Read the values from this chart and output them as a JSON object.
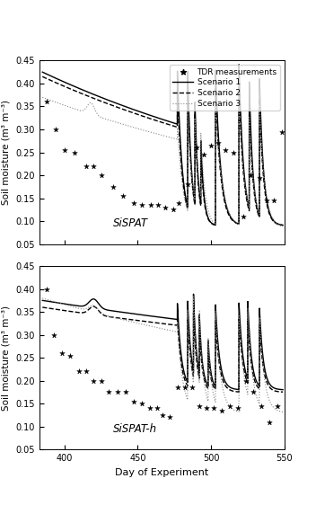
{
  "xlim": [
    383,
    550
  ],
  "ylim": [
    0.05,
    0.45
  ],
  "yticks": [
    0.05,
    0.1,
    0.15,
    0.2,
    0.25,
    0.3,
    0.35,
    0.4,
    0.45
  ],
  "xticks": [
    400,
    450,
    500,
    550
  ],
  "xlabel": "Day of Experiment",
  "ylabel": "Soil moisture (m³ m⁻³)",
  "label1": "SiSPAT",
  "label2": "SiSPAT-h",
  "legend_entries": [
    "TDR measurements",
    "Scenario 1",
    "Scenario 2",
    "Scenario 3"
  ],
  "background_color": "#ffffff"
}
